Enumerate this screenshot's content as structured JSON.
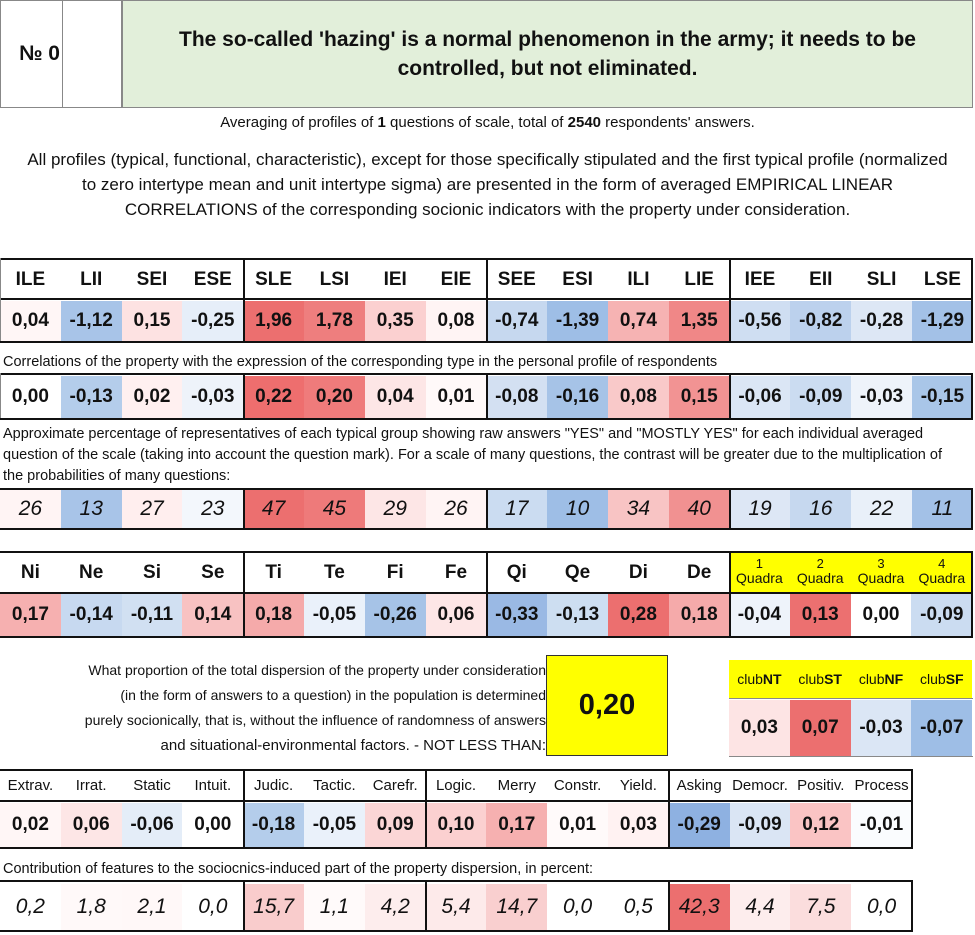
{
  "header": {
    "number_label": "№ 0",
    "title": "The so-called 'hazing' is a normal phenomenon in the army; it needs to be controlled, but not eliminated."
  },
  "summary": {
    "prefix": "Averaging of profiles of ",
    "question_count": "1",
    "middle": " questions of scale, total of ",
    "respondents": "2540",
    "suffix": " respondents' answers."
  },
  "description": "All profiles (typical, functional, characteristic), except for those specifically stipulated and the first typical profile (normalized to zero intertype mean and unit intertype sigma) are presented in the form of averaged EMPIRICAL LINEAR CORRELATIONS of the corresponding socionic indicators with the property under consideration.",
  "types": {
    "labels": [
      "ILE",
      "LII",
      "SEI",
      "ESE",
      "SLE",
      "LSI",
      "IEI",
      "EIE",
      "SEE",
      "ESI",
      "ILI",
      "LIE",
      "IEE",
      "EII",
      "SLI",
      "LSE"
    ],
    "profile": [
      "0,04",
      "-1,12",
      "0,15",
      "-0,25",
      "1,96",
      "1,78",
      "0,35",
      "0,08",
      "-0,74",
      "-1,39",
      "0,74",
      "1,35",
      "-0,56",
      "-0,82",
      "-0,28",
      "-1,29"
    ],
    "profile_colors": [
      "#fff6f6",
      "#a8c4e8",
      "#fde2e2",
      "#e6eef9",
      "#ec6f6f",
      "#ee7e7e",
      "#fbd0d0",
      "#fff4f4",
      "#c6d8ef",
      "#9ebee6",
      "#f6b3b3",
      "#f08787",
      "#cfdef2",
      "#bcd1ed",
      "#dde7f5",
      "#a3c1e7"
    ],
    "corr_caption": "Correlations of the property with the expression of the corresponding type in the personal profile of respondents",
    "corr": [
      "0,00",
      "-0,13",
      "0,02",
      "-0,03",
      "0,22",
      "0,20",
      "0,04",
      "0,01",
      "-0,08",
      "-0,16",
      "0,08",
      "0,15",
      "-0,06",
      "-0,09",
      "-0,03",
      "-0,15"
    ],
    "corr_colors": [
      "#ffffff",
      "#b4cdeb",
      "#fff0f0",
      "#eef3fa",
      "#ee6e6e",
      "#ef7b7b",
      "#fde6e6",
      "#fff9f9",
      "#d3e0f2",
      "#a6c3e7",
      "#f9c9c9",
      "#f29393",
      "#dbe6f5",
      "#cbdcf1",
      "#eef3fa",
      "#a9c6e8"
    ],
    "pct_caption": "Approximate percentage of representatives of each typical group showing raw answers \"YES\" and \"MOSTLY YES\" for each individual averaged question of the scale (taking into account the question mark). For a scale of many questions, the contrast will be greater due to the multiplication of the probabilities of many questions:",
    "pct": [
      "26",
      "13",
      "27",
      "23",
      "47",
      "45",
      "29",
      "26",
      "17",
      "10",
      "34",
      "40",
      "19",
      "16",
      "22",
      "11"
    ],
    "pct_colors": [
      "#fff4f4",
      "#a8c4e8",
      "#ffeeee",
      "#f3f7fc",
      "#ec6f6f",
      "#ee7a7a",
      "#fde6e6",
      "#fff4f4",
      "#cbdcf1",
      "#9ebee6",
      "#f8c4c4",
      "#f19191",
      "#dde7f5",
      "#c6d8ef",
      "#e9f0f9",
      "#a3c1e7"
    ]
  },
  "functions": {
    "labels": [
      "Ni",
      "Ne",
      "Si",
      "Se",
      "Ti",
      "Te",
      "Fi",
      "Fe",
      "Qi",
      "Qe",
      "Di",
      "De"
    ],
    "values": [
      "0,17",
      "-0,14",
      "-0,11",
      "0,14",
      "0,18",
      "-0,05",
      "-0,26",
      "0,06",
      "-0,33",
      "-0,13",
      "0,28",
      "0,18"
    ],
    "colors": [
      "#f6b0b0",
      "#c7d9f0",
      "#d1e0f2",
      "#f8c2c2",
      "#f5aaaa",
      "#eaf1fa",
      "#a6c3e7",
      "#fde6e6",
      "#9ab9e4",
      "#cddef1",
      "#ec6f6f",
      "#f5aaaa"
    ]
  },
  "quadras": {
    "labels": [
      [
        "1",
        "Quadra"
      ],
      [
        "2",
        "Quadra"
      ],
      [
        "3",
        "Quadra"
      ],
      [
        "4",
        "Quadra"
      ]
    ],
    "values": [
      "-0,04",
      "0,13",
      "0,00",
      "-0,09"
    ],
    "colors": [
      "#eef3fa",
      "#ec7070",
      "#ffffff",
      "#cbdcf1"
    ],
    "header_color": "#ffff00"
  },
  "socionic_ratio": {
    "text_lines": [
      "What proportion of the total dispersion of the property under consideration",
      "(in the form of answers to a question) in the population is determined",
      "purely socionically, that is, without the influence of randomness of answers",
      "and situational-environmental factors. - NOT LESS THAN:"
    ],
    "value": "0,20"
  },
  "clubs": {
    "labels": [
      [
        "club",
        "NT"
      ],
      [
        "club",
        "ST"
      ],
      [
        "club",
        "NF"
      ],
      [
        "club",
        "SF"
      ]
    ],
    "values": [
      "0,03",
      "0,07",
      "-0,03",
      "-0,07"
    ],
    "colors": [
      "#fde4e4",
      "#ec6f6f",
      "#dbe6f5",
      "#9ebee6"
    ]
  },
  "features": {
    "labels": [
      "Extrav.",
      "Irrat.",
      "Static",
      "Intuit.",
      "Judic.",
      "Tactic.",
      "Carefr.",
      "Logic.",
      "Merry",
      "Constr.",
      "Yield.",
      "Asking",
      "Democr.",
      "Positiv.",
      "Process"
    ],
    "values": [
      "0,02",
      "0,06",
      "-0,06",
      "0,00",
      "-0,18",
      "-0,05",
      "0,09",
      "0,10",
      "0,17",
      "0,01",
      "0,03",
      "-0,29",
      "-0,09",
      "0,12",
      "-0,01"
    ],
    "colors": [
      "#fff6f6",
      "#fde6e6",
      "#e4edf8",
      "#ffffff",
      "#b4cdeb",
      "#eaf1fa",
      "#fbd6d6",
      "#fbd0d0",
      "#f6b0b0",
      "#fffafa",
      "#fff2f2",
      "#8eb1e1",
      "#dae5f4",
      "#fac4c4",
      "#fafcfe"
    ],
    "contrib_caption": "Contribution of features to the sociocnics-induced part of the property dispersion, in percent:",
    "contrib": [
      "0,2",
      "1,8",
      "2,1",
      "0,0",
      "15,7",
      "1,1",
      "4,2",
      "5,4",
      "14,7",
      "0,0",
      "0,5",
      "42,3",
      "4,4",
      "7,5",
      "0,0"
    ],
    "contrib_colors": [
      "#ffffff",
      "#fff9f9",
      "#fff8f8",
      "#ffffff",
      "#f9cccc",
      "#fffafa",
      "#fdeded",
      "#fdeaea",
      "#f9cfcf",
      "#ffffff",
      "#ffffff",
      "#ec6f6f",
      "#fdeded",
      "#fbdddd",
      "#ffffff"
    ]
  }
}
